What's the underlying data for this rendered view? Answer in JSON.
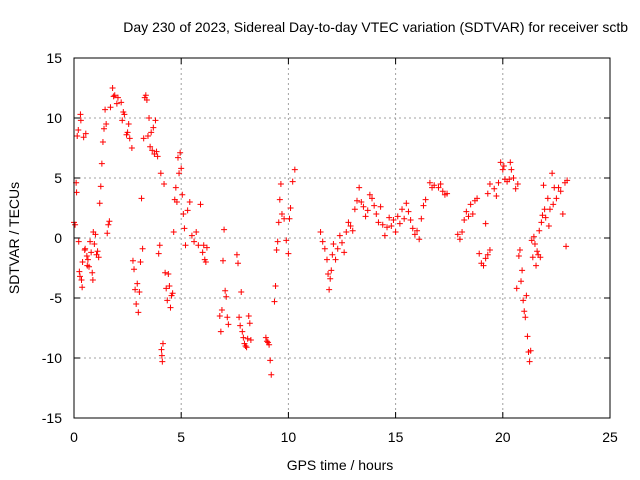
{
  "chart_data": {
    "type": "scatter",
    "title": "Day 230 of 2023, Sidereal Day-to-day VTEC variation (SDTVAR) for receiver sctb",
    "xlabel": "GPS time / hours",
    "ylabel": "SDTVAR / TECUs",
    "xlim": [
      0,
      25
    ],
    "ylim": [
      -15,
      15
    ],
    "xticks": [
      0,
      5,
      10,
      15,
      20,
      25
    ],
    "yticks": [
      -15,
      -10,
      -5,
      0,
      5,
      10,
      15
    ],
    "xtick_labels": [
      "0",
      "5",
      "10",
      "15",
      "20",
      "25"
    ],
    "ytick_labels": [
      "-15",
      "-10",
      "-5",
      "0",
      "5",
      "10",
      "15"
    ],
    "grid": true,
    "marker": "+",
    "color": "#ff0000",
    "series": [
      {
        "name": "sctb",
        "points": [
          [
            0.0,
            1.3
          ],
          [
            0.05,
            1.1
          ],
          [
            0.1,
            4.6
          ],
          [
            0.12,
            3.8
          ],
          [
            0.15,
            8.5
          ],
          [
            0.2,
            9.0
          ],
          [
            0.22,
            -0.3
          ],
          [
            0.25,
            -2.8
          ],
          [
            0.28,
            -3.2
          ],
          [
            0.3,
            10.3
          ],
          [
            0.32,
            9.8
          ],
          [
            0.35,
            -3.5
          ],
          [
            0.38,
            -4.1
          ],
          [
            0.4,
            -2.0
          ],
          [
            0.45,
            8.4
          ],
          [
            0.5,
            -1.0
          ],
          [
            0.52,
            -0.9
          ],
          [
            0.55,
            8.7
          ],
          [
            0.6,
            -1.5
          ],
          [
            0.62,
            -2.3
          ],
          [
            0.65,
            -1.8
          ],
          [
            0.7,
            -2.4
          ],
          [
            0.75,
            -0.3
          ],
          [
            0.8,
            -1.2
          ],
          [
            0.85,
            -2.9
          ],
          [
            0.88,
            -3.5
          ],
          [
            0.9,
            0.5
          ],
          [
            0.95,
            -0.5
          ],
          [
            1.0,
            0.3
          ],
          [
            1.05,
            -1.4
          ],
          [
            1.1,
            -1.1
          ],
          [
            1.15,
            -1.6
          ],
          [
            1.2,
            2.9
          ],
          [
            1.25,
            4.3
          ],
          [
            1.3,
            6.2
          ],
          [
            1.35,
            8.0
          ],
          [
            1.4,
            9.1
          ],
          [
            1.45,
            10.7
          ],
          [
            1.5,
            9.5
          ],
          [
            1.55,
            0.4
          ],
          [
            1.6,
            1.1
          ],
          [
            1.65,
            1.4
          ],
          [
            1.7,
            10.9
          ],
          [
            1.8,
            12.5
          ],
          [
            1.85,
            11.8
          ],
          [
            1.9,
            11.9
          ],
          [
            2.0,
            11.2
          ],
          [
            2.05,
            11.7
          ],
          [
            2.2,
            11.3
          ],
          [
            2.25,
            9.8
          ],
          [
            2.3,
            10.5
          ],
          [
            2.35,
            10.3
          ],
          [
            2.45,
            8.6
          ],
          [
            2.5,
            8.8
          ],
          [
            2.55,
            9.5
          ],
          [
            2.6,
            8.3
          ],
          [
            2.7,
            7.5
          ],
          [
            2.75,
            -1.9
          ],
          [
            2.8,
            -2.6
          ],
          [
            2.85,
            -4.3
          ],
          [
            2.9,
            -5.5
          ],
          [
            2.95,
            -3.8
          ],
          [
            3.0,
            -6.2
          ],
          [
            3.05,
            -4.5
          ],
          [
            3.1,
            -2.0
          ],
          [
            3.15,
            3.3
          ],
          [
            3.2,
            -0.9
          ],
          [
            3.25,
            8.3
          ],
          [
            3.3,
            11.7
          ],
          [
            3.35,
            11.9
          ],
          [
            3.4,
            11.5
          ],
          [
            3.45,
            8.5
          ],
          [
            3.5,
            10.0
          ],
          [
            3.55,
            7.6
          ],
          [
            3.6,
            8.8
          ],
          [
            3.65,
            7.3
          ],
          [
            3.7,
            9.2
          ],
          [
            3.75,
            7.0
          ],
          [
            3.8,
            9.8
          ],
          [
            3.85,
            7.2
          ],
          [
            3.9,
            6.8
          ],
          [
            3.95,
            -1.3
          ],
          [
            4.0,
            -0.6
          ],
          [
            4.05,
            5.4
          ],
          [
            4.08,
            -9.3
          ],
          [
            4.1,
            -9.8
          ],
          [
            4.12,
            -10.3
          ],
          [
            4.15,
            -8.8
          ],
          [
            4.2,
            4.5
          ],
          [
            4.25,
            -2.9
          ],
          [
            4.3,
            -4.2
          ],
          [
            4.35,
            -5.2
          ],
          [
            4.4,
            -3.0
          ],
          [
            4.45,
            -4.0
          ],
          [
            4.5,
            -5.8
          ],
          [
            4.55,
            -4.8
          ],
          [
            4.6,
            -4.6
          ],
          [
            4.65,
            0.5
          ],
          [
            4.7,
            3.2
          ],
          [
            4.75,
            4.2
          ],
          [
            4.8,
            3.0
          ],
          [
            4.85,
            6.7
          ],
          [
            4.9,
            5.4
          ],
          [
            4.95,
            7.1
          ],
          [
            5.0,
            5.8
          ],
          [
            5.05,
            3.6
          ],
          [
            5.1,
            2.0
          ],
          [
            5.15,
            0.8
          ],
          [
            5.2,
            -0.6
          ],
          [
            5.3,
            2.3
          ],
          [
            5.4,
            3.0
          ],
          [
            5.5,
            0.2
          ],
          [
            5.6,
            -0.3
          ],
          [
            5.7,
            0.5
          ],
          [
            5.8,
            -0.6
          ],
          [
            5.9,
            2.8
          ],
          [
            6.0,
            -1.2
          ],
          [
            6.05,
            -0.6
          ],
          [
            6.1,
            -1.8
          ],
          [
            6.15,
            -2.0
          ],
          [
            6.2,
            -0.8
          ],
          [
            6.8,
            -6.5
          ],
          [
            6.85,
            -7.8
          ],
          [
            6.9,
            -6.0
          ],
          [
            6.95,
            -1.9
          ],
          [
            7.0,
            0.7
          ],
          [
            7.05,
            -4.4
          ],
          [
            7.1,
            -4.9
          ],
          [
            7.15,
            -6.6
          ],
          [
            7.2,
            -7.2
          ],
          [
            7.6,
            -1.4
          ],
          [
            7.65,
            -2.1
          ],
          [
            7.7,
            -6.6
          ],
          [
            7.75,
            -7.3
          ],
          [
            7.8,
            -4.5
          ],
          [
            7.85,
            -7.8
          ],
          [
            7.9,
            -8.3
          ],
          [
            7.95,
            -8.8
          ],
          [
            8.0,
            -9.0
          ],
          [
            8.05,
            -9.1
          ],
          [
            8.1,
            -8.4
          ],
          [
            8.15,
            -6.5
          ],
          [
            8.2,
            -7.1
          ],
          [
            8.25,
            -8.5
          ],
          [
            8.95,
            -8.3
          ],
          [
            9.0,
            -8.6
          ],
          [
            9.05,
            -8.7
          ],
          [
            9.1,
            -8.9
          ],
          [
            9.15,
            -10.2
          ],
          [
            9.2,
            -11.4
          ],
          [
            9.35,
            -5.3
          ],
          [
            9.4,
            -4.0
          ],
          [
            9.45,
            -1.0
          ],
          [
            9.5,
            -0.3
          ],
          [
            9.55,
            1.3
          ],
          [
            9.6,
            3.2
          ],
          [
            9.65,
            4.5
          ],
          [
            9.7,
            2.0
          ],
          [
            9.8,
            1.6
          ],
          [
            9.9,
            -0.2
          ],
          [
            10.0,
            -1.3
          ],
          [
            10.05,
            1.6
          ],
          [
            10.1,
            2.5
          ],
          [
            10.2,
            4.7
          ],
          [
            10.3,
            5.7
          ],
          [
            11.5,
            0.5
          ],
          [
            11.6,
            -0.3
          ],
          [
            11.7,
            -0.9
          ],
          [
            11.8,
            -1.8
          ],
          [
            11.85,
            -3.0
          ],
          [
            11.9,
            -4.3
          ],
          [
            11.95,
            -3.4
          ],
          [
            12.0,
            -2.7
          ],
          [
            12.05,
            -1.4
          ],
          [
            12.1,
            -0.5
          ],
          [
            12.2,
            -1.8
          ],
          [
            12.3,
            -0.9
          ],
          [
            12.4,
            0.2
          ],
          [
            12.5,
            -0.4
          ],
          [
            12.6,
            -1.2
          ],
          [
            12.7,
            0.5
          ],
          [
            12.8,
            1.3
          ],
          [
            12.9,
            1.0
          ],
          [
            13.0,
            0.6
          ],
          [
            13.1,
            2.4
          ],
          [
            13.2,
            3.1
          ],
          [
            13.3,
            4.2
          ],
          [
            13.4,
            3.0
          ],
          [
            13.5,
            2.6
          ],
          [
            13.6,
            1.8
          ],
          [
            13.7,
            2.3
          ],
          [
            13.8,
            3.6
          ],
          [
            13.9,
            3.3
          ],
          [
            14.0,
            2.7
          ],
          [
            14.1,
            2.0
          ],
          [
            14.2,
            1.3
          ],
          [
            14.3,
            2.6
          ],
          [
            14.4,
            1.1
          ],
          [
            14.5,
            0.2
          ],
          [
            14.6,
            0.9
          ],
          [
            14.7,
            1.7
          ],
          [
            14.8,
            1.0
          ],
          [
            14.9,
            1.5
          ],
          [
            15.0,
            0.5
          ],
          [
            15.1,
            1.8
          ],
          [
            15.2,
            1.2
          ],
          [
            15.3,
            2.4
          ],
          [
            15.4,
            1.6
          ],
          [
            15.5,
            2.9
          ],
          [
            15.6,
            2.2
          ],
          [
            15.7,
            1.5
          ],
          [
            15.8,
            0.8
          ],
          [
            15.9,
            0.3
          ],
          [
            16.0,
            0.6
          ],
          [
            16.1,
            -0.1
          ],
          [
            16.2,
            1.6
          ],
          [
            16.3,
            2.7
          ],
          [
            16.4,
            3.2
          ],
          [
            16.6,
            4.6
          ],
          [
            16.7,
            4.2
          ],
          [
            16.8,
            4.4
          ],
          [
            17.0,
            4.2
          ],
          [
            17.1,
            4.5
          ],
          [
            17.2,
            3.9
          ],
          [
            17.3,
            3.6
          ],
          [
            17.4,
            3.7
          ],
          [
            17.9,
            0.3
          ],
          [
            18.0,
            -0.1
          ],
          [
            18.1,
            0.5
          ],
          [
            18.2,
            1.5
          ],
          [
            18.3,
            2.2
          ],
          [
            18.4,
            1.8
          ],
          [
            18.5,
            2.8
          ],
          [
            18.6,
            2.0
          ],
          [
            18.7,
            3.1
          ],
          [
            18.8,
            3.3
          ],
          [
            18.9,
            -1.3
          ],
          [
            19.0,
            -2.1
          ],
          [
            19.1,
            -2.3
          ],
          [
            19.2,
            -1.7
          ],
          [
            19.3,
            -1.4
          ],
          [
            19.4,
            -1.0
          ],
          [
            19.2,
            1.2
          ],
          [
            19.3,
            3.7
          ],
          [
            19.4,
            4.5
          ],
          [
            19.6,
            4.1
          ],
          [
            19.7,
            3.5
          ],
          [
            19.8,
            4.6
          ],
          [
            19.9,
            6.3
          ],
          [
            20.0,
            5.7
          ],
          [
            20.05,
            6.0
          ],
          [
            20.1,
            4.9
          ],
          [
            20.2,
            4.7
          ],
          [
            20.3,
            4.9
          ],
          [
            20.35,
            6.3
          ],
          [
            20.4,
            5.7
          ],
          [
            20.5,
            5.0
          ],
          [
            20.6,
            4.1
          ],
          [
            20.65,
            -4.2
          ],
          [
            20.7,
            4.5
          ],
          [
            20.75,
            -1.5
          ],
          [
            20.8,
            -1.0
          ],
          [
            20.85,
            -3.6
          ],
          [
            20.9,
            -2.7
          ],
          [
            20.95,
            -5.2
          ],
          [
            21.0,
            -6.1
          ],
          [
            21.05,
            -6.6
          ],
          [
            21.1,
            -4.8
          ],
          [
            21.15,
            -8.2
          ],
          [
            21.2,
            -9.5
          ],
          [
            21.25,
            -10.3
          ],
          [
            21.3,
            -9.4
          ],
          [
            21.35,
            -0.2
          ],
          [
            21.4,
            -1.6
          ],
          [
            21.45,
            0.1
          ],
          [
            21.5,
            -0.5
          ],
          [
            21.55,
            -2.3
          ],
          [
            21.6,
            -1.1
          ],
          [
            21.65,
            -1.4
          ],
          [
            21.7,
            0.6
          ],
          [
            21.75,
            -1.6
          ],
          [
            21.8,
            1.3
          ],
          [
            21.85,
            1.9
          ],
          [
            21.9,
            4.4
          ],
          [
            21.95,
            2.4
          ],
          [
            22.0,
            1.7
          ],
          [
            22.1,
            3.3
          ],
          [
            22.15,
            1.0
          ],
          [
            22.2,
            2.4
          ],
          [
            22.3,
            5.4
          ],
          [
            22.35,
            2.8
          ],
          [
            22.4,
            4.2
          ],
          [
            22.5,
            3.3
          ],
          [
            22.6,
            4.2
          ],
          [
            22.7,
            3.9
          ],
          [
            22.8,
            2.0
          ],
          [
            22.9,
            4.6
          ],
          [
            22.95,
            -0.7
          ],
          [
            23.0,
            4.8
          ]
        ]
      }
    ]
  }
}
